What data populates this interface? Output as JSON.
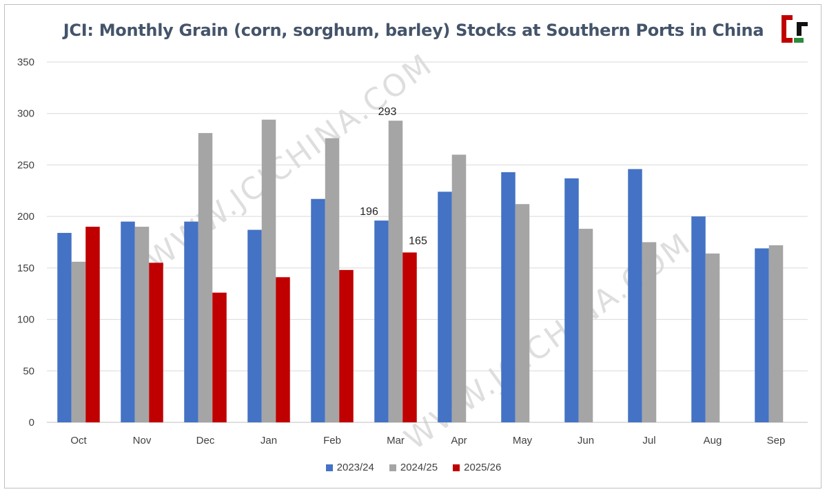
{
  "chart_data": {
    "type": "bar",
    "title": "JCI: Monthly Grain (corn, sorghum, barley) Stocks at Southern Ports in China",
    "categories": [
      "Oct",
      "Nov",
      "Dec",
      "Jan",
      "Feb",
      "Mar",
      "Apr",
      "May",
      "Jun",
      "Jul",
      "Aug",
      "Sep"
    ],
    "series": [
      {
        "name": "2023/24",
        "color": "#4472c4",
        "values": [
          184,
          195,
          195,
          187,
          217,
          196,
          224,
          243,
          237,
          246,
          200,
          169
        ]
      },
      {
        "name": "2024/25",
        "color": "#a5a5a5",
        "values": [
          156,
          190,
          281,
          294,
          276,
          293,
          260,
          212,
          188,
          175,
          164,
          172
        ]
      },
      {
        "name": "2025/26",
        "color": "#c00000",
        "values": [
          190,
          155,
          126,
          141,
          148,
          165,
          null,
          null,
          null,
          null,
          null,
          null
        ]
      }
    ],
    "data_labels": [
      {
        "series": "2023/24",
        "category": "Mar",
        "text": "196"
      },
      {
        "series": "2024/25",
        "category": "Mar",
        "text": "293"
      },
      {
        "series": "2025/26",
        "category": "Mar",
        "text": "165"
      }
    ],
    "ylim": [
      0,
      350
    ],
    "yticks": [
      "0",
      "50",
      "100",
      "150",
      "200",
      "250",
      "300",
      "350"
    ],
    "xlabel": "",
    "ylabel": "",
    "grid": true,
    "legend_position": "bottom"
  },
  "watermark": {
    "text_1": "WWW.JCICHINA.COM",
    "text_2": "WWW.JCICHINA.COM"
  },
  "logo": {
    "icon": "jci-logo-icon"
  }
}
